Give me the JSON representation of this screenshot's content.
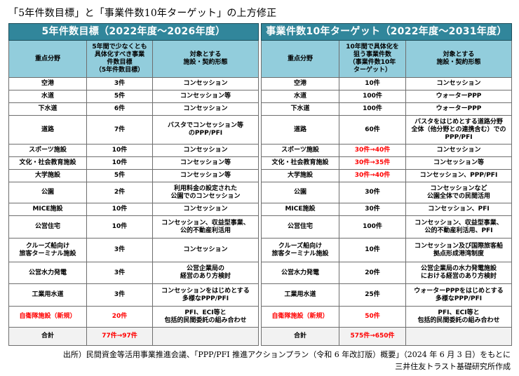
{
  "title": "「5年件数目標」と「事業件数10年ターゲット」の上方修正",
  "left_table": {
    "header": "5年件数目標（2022年度～2026年度）",
    "columns": [
      "重点分野",
      "5年間で少なくとも\n具体化すべき事業\n件数目標\n（5年件数目標）",
      "対象とする\n施設・契約形態"
    ],
    "rows": [
      {
        "field": "空港",
        "count": "3件",
        "form": "コンセッション"
      },
      {
        "field": "水道",
        "count": "5件",
        "form": "コンセッション等"
      },
      {
        "field": "下水道",
        "count": "6件",
        "form": "コンセッション"
      },
      {
        "field": "道路",
        "count": "7件",
        "form": "バスタでコンセッション等\nのPPP/PFI"
      },
      {
        "field": "スポーツ施設",
        "count": "10件",
        "form": "コンセッション"
      },
      {
        "field": "文化・社会教育施設",
        "count": "10件",
        "form": "コンセッション等"
      },
      {
        "field": "大学施設",
        "count": "5件",
        "form": "コンセッション等"
      },
      {
        "field": "公園",
        "count": "2件",
        "form": "利用料金の設定された\n公園でのコンセッション"
      },
      {
        "field": "MICE施設",
        "count": "10件",
        "form": "コンセッション"
      },
      {
        "field": "公営住宅",
        "count": "10件",
        "form": "コンセッション、収益型事業、\n公的不動産利活用"
      },
      {
        "field": "クルーズ船向け\n旅客ターミナル施設",
        "count": "3件",
        "form": "コンセッション"
      },
      {
        "field": "公営水力発電",
        "count": "3件",
        "form": "公営企業局の\n経営のあり方検討"
      },
      {
        "field": "工業用水道",
        "count": "3件",
        "form": "コンセッションをはじめとする\n多様なPPP/PFI"
      },
      {
        "field": "自衛隊施設（新規）",
        "count": "20件",
        "form": "PFI、ECI等と\n包括的民間委託の組み合わせ"
      }
    ],
    "total": {
      "label": "合計",
      "count": "77件→97件",
      "form": ""
    }
  },
  "right_table": {
    "header": "事業件数10年ターゲット（2022年度～2031年度）",
    "columns": [
      "重点分野",
      "10年間で具体化を\n狙う事業件数\n（事業件数10年\nターゲット）",
      "対象とする\n施設・契約形態"
    ],
    "rows": [
      {
        "field": "空港",
        "count": "10件",
        "form": "コンセッション"
      },
      {
        "field": "水道",
        "count": "100件",
        "form": "ウォーターPPP"
      },
      {
        "field": "下水道",
        "count": "100件",
        "form": "ウォーターPPP"
      },
      {
        "field": "道路",
        "count": "60件",
        "form": "バスタをはじめとする道路分野\n全体（他分野との連携含む）での\nPPP/PFI"
      },
      {
        "field": "スポーツ施設",
        "count": "30件→40件",
        "form": "コンセッション"
      },
      {
        "field": "文化・社会教育施設",
        "count": "30件→35件",
        "form": "コンセッション等"
      },
      {
        "field": "大学施設",
        "count": "30件→40件",
        "form": "コンセッション、PPP/PFI"
      },
      {
        "field": "公園",
        "count": "30件",
        "form": "コンセッションなど\n公園全体での民間活用"
      },
      {
        "field": "MICE施設",
        "count": "30件",
        "form": "コンセッション、PFI"
      },
      {
        "field": "公営住宅",
        "count": "100件",
        "form": "コンセッション、収益型事業、\n公的不動産利活用、PFI"
      },
      {
        "field": "クルーズ船向け\n旅客ターミナル施設",
        "count": "10件",
        "form": "コンセッション及び国際旅客船\n拠点形成港湾制度"
      },
      {
        "field": "公営水力発電",
        "count": "20件",
        "form": "公営企業局の水力発電施設\nにおける経営のあり方検討"
      },
      {
        "field": "工業用水道",
        "count": "25件",
        "form": "ウォーターPPPをはじめとする\n多様なPPP/PFI"
      },
      {
        "field": "自衛隊施設（新規）",
        "count": "50件",
        "form": "PFI、ECI等と\n包括的民間委託の組み合わせ"
      }
    ],
    "total": {
      "label": "合計",
      "count": "575件→650件",
      "form": ""
    }
  },
  "source": {
    "line1": "出所）民間資金等活用事業推進会議、「PPP/PFI 推進アクションプラン（令和 6 年改訂版）概要」（2024 年 6 月 3 日）をもとに",
    "line2": "三井住友トラスト基礎研究所作成"
  },
  "colors": {
    "header_bg": "#31869b",
    "subheader_bg": "#92cddc",
    "total_bg": "#f2f2f2",
    "highlight": "#ff0000"
  }
}
